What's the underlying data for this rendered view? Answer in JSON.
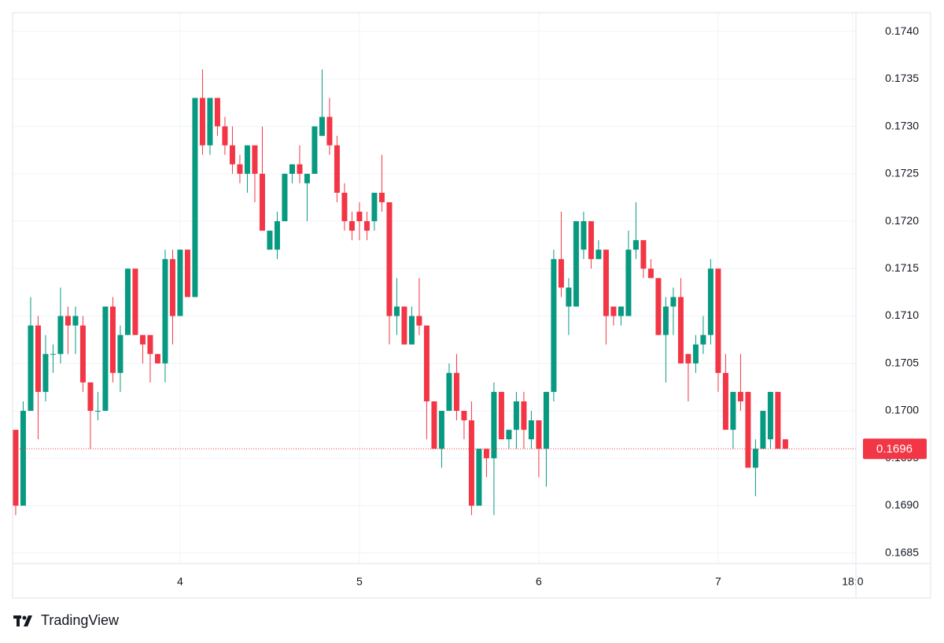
{
  "chart_data": {
    "type": "candlestick",
    "brand": "TradingView",
    "up_color": "#089981",
    "down_color": "#f23645",
    "grid": true,
    "x": [
      3.0833,
      3.125,
      3.1667,
      3.2083,
      3.25,
      3.2917,
      3.3333,
      3.375,
      3.4167,
      3.4583,
      3.5,
      3.5417,
      3.5833,
      3.625,
      3.6667,
      3.7083,
      3.75,
      3.7917,
      3.8333,
      3.875,
      3.9167,
      3.9583,
      4,
      4.0417,
      4.0833,
      4.125,
      4.1667,
      4.2083,
      4.25,
      4.2917,
      4.3333,
      4.375,
      4.4167,
      4.4583,
      4.5,
      4.5417,
      4.5833,
      4.625,
      4.6667,
      4.7083,
      4.75,
      4.7917,
      4.8333,
      4.875,
      4.9167,
      4.9583,
      5,
      5.0417,
      5.0833,
      5.125,
      5.1667,
      5.2083,
      5.25,
      5.2917,
      5.3333,
      5.375,
      5.4167,
      5.4583,
      5.5,
      5.5417,
      5.5833,
      5.625,
      5.6667,
      5.7083,
      5.75,
      5.7917,
      5.8333,
      5.875,
      5.9167,
      5.9583,
      6,
      6.0417,
      6.0833,
      6.125,
      6.1667,
      6.2083,
      6.25,
      6.2917,
      6.3333,
      6.375,
      6.4167,
      6.4583,
      6.5,
      6.5417,
      6.5833,
      6.625,
      6.6667,
      6.7083,
      6.75,
      6.7917,
      6.8333,
      6.875,
      6.9167,
      6.9583,
      7,
      7.0417,
      7.0833,
      7.125,
      7.1667,
      7.2083,
      7.25,
      7.2917,
      7.3333,
      7.375
    ],
    "open": [
      0.1698,
      0.169,
      0.17,
      0.1709,
      0.1702,
      0.1706,
      0.1706,
      0.171,
      0.1709,
      0.1709,
      0.1703,
      0.17,
      0.17,
      0.1711,
      0.1704,
      0.1708,
      0.1715,
      0.1708,
      0.1708,
      0.1706,
      0.1705,
      0.1716,
      0.171,
      0.1717,
      0.1712,
      0.1733,
      0.1728,
      0.1733,
      0.173,
      0.1728,
      0.1726,
      0.1725,
      0.1728,
      0.1725,
      0.1717,
      0.1717,
      0.172,
      0.1725,
      0.1726,
      0.1724,
      0.1725,
      0.1729,
      0.1731,
      0.1728,
      0.1723,
      0.172,
      0.1721,
      0.172,
      0.172,
      0.1723,
      0.1722,
      0.171,
      0.1711,
      0.1707,
      0.171,
      0.1709,
      0.1701,
      0.1696,
      0.17,
      0.1704,
      0.17,
      0.1699,
      0.169,
      0.1696,
      0.1695,
      0.1702,
      0.1697,
      0.1698,
      0.1701,
      0.1697,
      0.1699,
      0.1696,
      0.1702,
      0.1716,
      0.1711,
      0.1711,
      0.1717,
      0.172,
      0.1716,
      0.1717,
      0.1711,
      0.171,
      0.171,
      0.1717,
      0.1718,
      0.1715,
      0.1714,
      0.1708,
      0.1711,
      0.1712,
      0.1706,
      0.1705,
      0.1707,
      0.1708,
      0.1715,
      0.1704,
      0.1698,
      0.1702,
      0.1702,
      0.1694,
      0.1696,
      0.1697,
      0.1702,
      0.1697
    ],
    "high": [
      0.1698,
      0.1701,
      0.1712,
      0.171,
      0.1708,
      0.1707,
      0.1713,
      0.1711,
      0.1711,
      0.171,
      0.1703,
      0.1702,
      0.1711,
      0.1712,
      0.1709,
      0.1715,
      0.1715,
      0.1708,
      0.1708,
      0.1706,
      0.1717,
      0.1717,
      0.1717,
      0.1717,
      0.1733,
      0.1736,
      0.1733,
      0.1733,
      0.1731,
      0.173,
      0.1727,
      0.1728,
      0.1728,
      0.173,
      0.1719,
      0.1721,
      0.1725,
      0.1726,
      0.1728,
      0.1725,
      0.173,
      0.1736,
      0.1733,
      0.1729,
      0.1724,
      0.1721,
      0.1722,
      0.1721,
      0.1723,
      0.1727,
      0.1722,
      0.1714,
      0.1711,
      0.1711,
      0.1714,
      0.1709,
      0.1701,
      0.17,
      0.1705,
      0.1706,
      0.17,
      0.1701,
      0.1696,
      0.1696,
      0.1703,
      0.1702,
      0.1698,
      0.1702,
      0.1702,
      0.17,
      0.1699,
      0.1702,
      0.1717,
      0.1721,
      0.1714,
      0.172,
      0.1721,
      0.172,
      0.1718,
      0.1717,
      0.1711,
      0.1711,
      0.1719,
      0.1722,
      0.1718,
      0.1716,
      0.1714,
      0.1712,
      0.1713,
      0.1714,
      0.1706,
      0.1708,
      0.171,
      0.1716,
      0.1715,
      0.1706,
      0.1702,
      0.1706,
      0.1702,
      0.1697,
      0.17,
      0.1702,
      0.1702,
      0.1697
    ],
    "low": [
      0.1689,
      0.169,
      0.17,
      0.1697,
      0.1701,
      0.1704,
      0.1705,
      0.1706,
      0.1706,
      0.1702,
      0.1696,
      0.1699,
      0.17,
      0.1703,
      0.1702,
      0.1708,
      0.1708,
      0.1705,
      0.1703,
      0.1705,
      0.1703,
      0.1707,
      0.171,
      0.1712,
      0.1712,
      0.1727,
      0.1727,
      0.1729,
      0.1727,
      0.1725,
      0.1724,
      0.1723,
      0.1722,
      0.1719,
      0.1717,
      0.1716,
      0.172,
      0.1724,
      0.1724,
      0.172,
      0.1725,
      0.1729,
      0.1727,
      0.1722,
      0.1719,
      0.1718,
      0.1718,
      0.1718,
      0.1719,
      0.1721,
      0.1707,
      0.1708,
      0.1707,
      0.1707,
      0.1708,
      0.1697,
      0.1696,
      0.1694,
      0.17,
      0.1699,
      0.1697,
      0.1689,
      0.169,
      0.1693,
      0.1689,
      0.1697,
      0.1696,
      0.1696,
      0.1696,
      0.1696,
      0.1693,
      0.1692,
      0.1701,
      0.1712,
      0.1708,
      0.1711,
      0.1716,
      0.1715,
      0.1716,
      0.1707,
      0.1709,
      0.1709,
      0.171,
      0.1716,
      0.1714,
      0.1714,
      0.1708,
      0.1703,
      0.1708,
      0.1705,
      0.1701,
      0.1704,
      0.1706,
      0.1707,
      0.1702,
      0.1698,
      0.1696,
      0.17,
      0.1694,
      0.1691,
      0.1696,
      0.1696,
      0.1696,
      0.1696
    ],
    "close": [
      0.169,
      0.17,
      0.1709,
      0.1702,
      0.1706,
      0.1706,
      0.171,
      0.1709,
      0.171,
      0.1703,
      0.17,
      0.17,
      0.1711,
      0.1704,
      0.1708,
      0.1715,
      0.1708,
      0.1707,
      0.1706,
      0.1705,
      0.1716,
      0.171,
      0.1717,
      0.1712,
      0.1733,
      0.1728,
      0.1733,
      0.173,
      0.1728,
      0.1726,
      0.1725,
      0.1728,
      0.1725,
      0.1719,
      0.1719,
      0.172,
      0.1725,
      0.1726,
      0.1725,
      0.1725,
      0.173,
      0.1731,
      0.1728,
      0.1723,
      0.172,
      0.1719,
      0.172,
      0.1719,
      0.1723,
      0.1722,
      0.171,
      0.1711,
      0.1707,
      0.171,
      0.1709,
      0.1701,
      0.1696,
      0.17,
      0.1704,
      0.17,
      0.1699,
      0.169,
      0.1696,
      0.1695,
      0.1702,
      0.1697,
      0.1698,
      0.1701,
      0.1698,
      0.1699,
      0.1696,
      0.1702,
      0.1716,
      0.1713,
      0.1713,
      0.172,
      0.172,
      0.1716,
      0.1717,
      0.171,
      0.171,
      0.1711,
      0.1717,
      0.1718,
      0.1715,
      0.1714,
      0.1708,
      0.1711,
      0.1712,
      0.1705,
      0.1705,
      0.1707,
      0.1708,
      0.1715,
      0.1704,
      0.1698,
      0.1702,
      0.1701,
      0.1694,
      0.1696,
      0.17,
      0.1702,
      0.1696,
      0.1696
    ],
    "last_price": 0.1696,
    "xlim": [
      3.066,
      7.768
    ],
    "xticks": [
      4,
      5,
      6,
      7,
      {
        "value": 7.75,
        "label": "18:0"
      }
    ],
    "ylim": [
      0.16839,
      0.1742
    ],
    "yticks": [
      0.1685,
      {
        "value": 0.169,
        "label": "0.1690"
      },
      0.1695,
      {
        "value": 0.17,
        "label": "0.1700"
      },
      0.1705,
      {
        "value": 0.171,
        "label": "0.1710"
      },
      0.1715,
      {
        "value": 0.172,
        "label": "0.1720"
      },
      0.1725,
      {
        "value": 0.173,
        "label": "0.1730"
      },
      0.1735,
      {
        "value": 0.174,
        "label": "0.1740"
      }
    ]
  }
}
